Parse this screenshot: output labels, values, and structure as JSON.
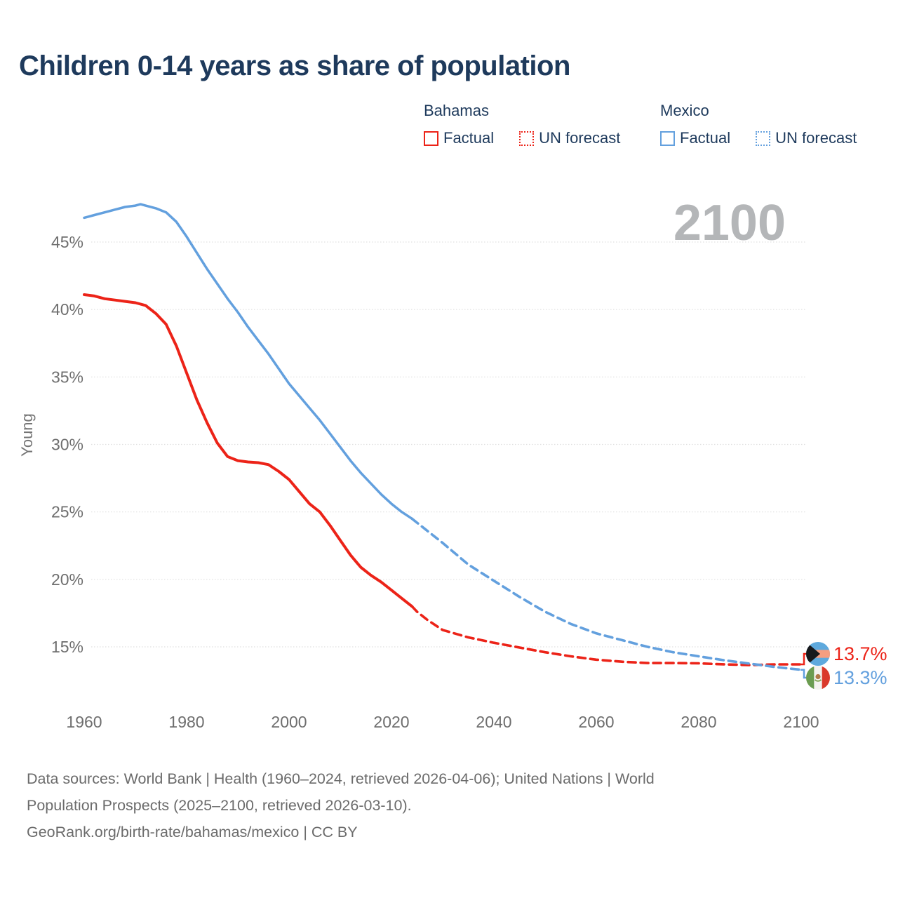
{
  "title": "Children 0-14 years as share of population",
  "watermark": "2100",
  "colors": {
    "red": "#ec2318",
    "blue": "#63a0de",
    "title_navy": "#1e3a5c",
    "grid": "#e0e0e0",
    "tick": "#6e6e6e",
    "axis_label": "#757575",
    "watermark_gray": "#b4b6b8",
    "footer_gray": "#6b6b6b"
  },
  "legend": {
    "groups": [
      {
        "name": "Bahamas",
        "color": "#ec2318",
        "items": [
          {
            "label": "Factual",
            "line_style": "solid"
          },
          {
            "label": "UN forecast",
            "line_style": "dotted"
          }
        ]
      },
      {
        "name": "Mexico",
        "color": "#63a0de",
        "items": [
          {
            "label": "Factual",
            "line_style": "solid"
          },
          {
            "label": "UN forecast",
            "line_style": "dotted"
          }
        ]
      }
    ]
  },
  "end_labels": [
    {
      "country": "Bahamas",
      "flag_icon": "bahamas-flag-icon",
      "value": 13.7,
      "value_label": "13.7%",
      "color": "#ec2318"
    },
    {
      "country": "Mexico",
      "flag_icon": "mexico-flag-icon",
      "value": 13.3,
      "value_label": "13.3%",
      "color": "#63a0de"
    }
  ],
  "footer": {
    "lines": [
      "Data sources: World Bank | Health (1960–2024, retrieved 2026-04-06); United Nations | World",
      "Population Prospects (2025–2100, retrieved 2026-03-10).",
      "GeoRank.org/birth-rate/bahamas/mexico | CC BY"
    ]
  },
  "chart_data": {
    "type": "line",
    "title": "Children 0-14 years as share of population",
    "xlabel": "",
    "ylabel": "Young",
    "xlim": [
      1958,
      2112
    ],
    "ylim": [
      12.5,
      48.5
    ],
    "grid": true,
    "legend_position": "top-right",
    "annotation": "2100",
    "axes": {
      "y_label": "Young",
      "y_ticks": [
        {
          "value": 45,
          "label": "45%"
        },
        {
          "value": 40,
          "label": "40%"
        },
        {
          "value": 35,
          "label": "35%"
        },
        {
          "value": 30,
          "label": "30%"
        },
        {
          "value": 25,
          "label": "25%"
        },
        {
          "value": 20,
          "label": "20%"
        },
        {
          "value": 15,
          "label": "15%"
        }
      ],
      "x_ticks": [
        {
          "value": 1960,
          "label": "1960"
        },
        {
          "value": 1980,
          "label": "1980"
        },
        {
          "value": 2000,
          "label": "2000"
        },
        {
          "value": 2020,
          "label": "2020"
        },
        {
          "value": 2040,
          "label": "2040"
        },
        {
          "value": 2060,
          "label": "2060"
        },
        {
          "value": 2080,
          "label": "2080"
        },
        {
          "value": 2100,
          "label": "2100"
        }
      ]
    },
    "series": [
      {
        "name": "Bahamas Factual",
        "color": "#ec2318",
        "style": "solid",
        "width": 4,
        "points": [
          [
            1960,
            41.1
          ],
          [
            1962,
            41.0
          ],
          [
            1964,
            40.8
          ],
          [
            1966,
            40.7
          ],
          [
            1968,
            40.6
          ],
          [
            1970,
            40.5
          ],
          [
            1972,
            40.3
          ],
          [
            1974,
            39.7
          ],
          [
            1976,
            38.9
          ],
          [
            1978,
            37.3
          ],
          [
            1980,
            35.3
          ],
          [
            1982,
            33.3
          ],
          [
            1984,
            31.6
          ],
          [
            1986,
            30.1
          ],
          [
            1988,
            29.1
          ],
          [
            1990,
            28.8
          ],
          [
            1992,
            28.7
          ],
          [
            1994,
            28.65
          ],
          [
            1996,
            28.5
          ],
          [
            1998,
            28.0
          ],
          [
            2000,
            27.4
          ],
          [
            2002,
            26.5
          ],
          [
            2004,
            25.6
          ],
          [
            2006,
            25.0
          ],
          [
            2008,
            24.0
          ],
          [
            2010,
            22.9
          ],
          [
            2012,
            21.8
          ],
          [
            2014,
            20.9
          ],
          [
            2016,
            20.3
          ],
          [
            2018,
            19.8
          ],
          [
            2020,
            19.2
          ],
          [
            2022,
            18.6
          ],
          [
            2024,
            18.0
          ]
        ]
      },
      {
        "name": "Bahamas UN forecast",
        "color": "#ec2318",
        "style": "dashed",
        "width": 3.6,
        "points": [
          [
            2024,
            18.0
          ],
          [
            2025,
            17.6
          ],
          [
            2027,
            17.0
          ],
          [
            2030,
            16.25
          ],
          [
            2035,
            15.7
          ],
          [
            2040,
            15.3
          ],
          [
            2045,
            14.95
          ],
          [
            2050,
            14.6
          ],
          [
            2055,
            14.3
          ],
          [
            2060,
            14.05
          ],
          [
            2065,
            13.9
          ],
          [
            2070,
            13.8
          ],
          [
            2075,
            13.8
          ],
          [
            2080,
            13.78
          ],
          [
            2085,
            13.7
          ],
          [
            2090,
            13.65
          ],
          [
            2095,
            13.7
          ],
          [
            2100,
            13.7
          ]
        ]
      },
      {
        "name": "Mexico Factual",
        "color": "#63a0de",
        "style": "solid",
        "width": 3.5,
        "points": [
          [
            1960,
            46.8
          ],
          [
            1962,
            47.0
          ],
          [
            1964,
            47.2
          ],
          [
            1966,
            47.4
          ],
          [
            1968,
            47.6
          ],
          [
            1970,
            47.7
          ],
          [
            1971,
            47.8
          ],
          [
            1972,
            47.7
          ],
          [
            1974,
            47.5
          ],
          [
            1976,
            47.2
          ],
          [
            1978,
            46.5
          ],
          [
            1980,
            45.4
          ],
          [
            1982,
            44.2
          ],
          [
            1984,
            43.0
          ],
          [
            1986,
            41.9
          ],
          [
            1988,
            40.8
          ],
          [
            1990,
            39.8
          ],
          [
            1992,
            38.7
          ],
          [
            1994,
            37.7
          ],
          [
            1996,
            36.7
          ],
          [
            1998,
            35.6
          ],
          [
            2000,
            34.5
          ],
          [
            2002,
            33.6
          ],
          [
            2004,
            32.7
          ],
          [
            2006,
            31.8
          ],
          [
            2008,
            30.8
          ],
          [
            2010,
            29.8
          ],
          [
            2012,
            28.8
          ],
          [
            2014,
            27.9
          ],
          [
            2016,
            27.1
          ],
          [
            2018,
            26.3
          ],
          [
            2020,
            25.6
          ],
          [
            2022,
            25.0
          ],
          [
            2024,
            24.5
          ]
        ]
      },
      {
        "name": "Mexico UN forecast",
        "color": "#63a0de",
        "style": "dashed",
        "width": 3.6,
        "points": [
          [
            2024,
            24.5
          ],
          [
            2025,
            24.2
          ],
          [
            2030,
            22.7
          ],
          [
            2035,
            21.1
          ],
          [
            2040,
            19.9
          ],
          [
            2045,
            18.7
          ],
          [
            2050,
            17.6
          ],
          [
            2055,
            16.7
          ],
          [
            2060,
            16.0
          ],
          [
            2065,
            15.5
          ],
          [
            2070,
            15.0
          ],
          [
            2075,
            14.6
          ],
          [
            2080,
            14.3
          ],
          [
            2085,
            14.0
          ],
          [
            2090,
            13.75
          ],
          [
            2095,
            13.5
          ],
          [
            2100,
            13.3
          ]
        ]
      }
    ]
  }
}
